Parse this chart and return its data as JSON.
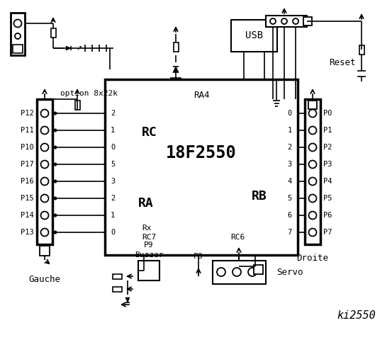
{
  "bg_color": "#ffffff",
  "lc": "black",
  "title": "ki2550",
  "chip_label": "18F2550",
  "chip_sublabel": "RA4",
  "rc_label": "RC",
  "ra_label": "RA",
  "rb_label": "RB",
  "rx_label": "Rx",
  "rc7_label": "RC7",
  "rc6_label": "RC6",
  "gauche_label": "Gauche",
  "droite_label": "Droite",
  "option_label": "option 8x22k",
  "reset_label": "Reset",
  "usb_label": "USB",
  "buzzer_label": "Buzzer",
  "servo_label": "Servo",
  "p8_label": "P8",
  "p9_label": "P9",
  "left_pins": [
    "P12",
    "P11",
    "P10",
    "P17",
    "P16",
    "P15",
    "P14",
    "P13"
  ],
  "right_pins": [
    "P0",
    "P1",
    "P2",
    "P3",
    "P4",
    "P5",
    "P6",
    "P7"
  ],
  "rc_pins": [
    "2",
    "1",
    "0",
    "5",
    "3",
    "2",
    "1",
    "0"
  ],
  "rb_pins": [
    "0",
    "1",
    "2",
    "3",
    "4",
    "5",
    "6",
    "7"
  ]
}
